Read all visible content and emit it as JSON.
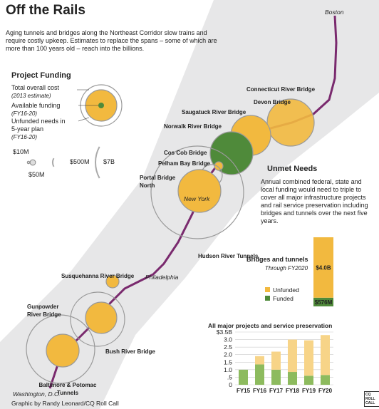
{
  "header": {
    "title": "Off the Rails",
    "subtitle": "Aging tunnels and bridges along the Northeast Corridor slow trains and require costly upkeep. Estimates to replace the spans – some of which are more than 100 years old – reach into the billions."
  },
  "funding_legend": {
    "title": "Project Funding",
    "items": [
      {
        "label": "Total overall cost",
        "note": "(2013 estimate)"
      },
      {
        "label": "Available funding",
        "note": "(FY16-20)"
      },
      {
        "label": "Unfunded needs in 5-year plan",
        "note": "(FY16-20)"
      }
    ],
    "sizes": [
      {
        "value": 10,
        "label": "$10M"
      },
      {
        "value": 50,
        "label": "$50M"
      },
      {
        "value": 500,
        "label": "$500M"
      },
      {
        "value": 7000,
        "label": "$7B"
      }
    ]
  },
  "map": {
    "cities": [
      "Boston",
      "New York",
      "Philadelphia",
      "Washington, D.C."
    ],
    "projects": [
      "Connecticut River Bridge",
      "Devon Bridge",
      "Saugatuck River Bridge",
      "Norwalk River Bridge",
      "Cos Cob Bridge",
      "Pelham Bay Bridge",
      "Portal Bridge North",
      "Hudson River Tunnels",
      "Susquehanna River Bridge",
      "Gunpowder River Bridge",
      "Bush River Bridge",
      "Baltimore & Potomac Tunnels"
    ]
  },
  "unmet_needs": {
    "title": "Unmet Needs",
    "text": "Annual combined federal, state and local funding would need to triple to cover all major infrastructure projects and rail service preservation including bridges and tunnels over the next five years."
  },
  "bridges_chart": {
    "type": "bar",
    "title": "Bridges and tunnels",
    "subtitle": "Through FY2020",
    "series": [
      {
        "name": "Unfunded",
        "color": "#f2b93f",
        "values": [
          4.0
        ],
        "value_labels": [
          "$4.0B"
        ]
      },
      {
        "name": "Funded",
        "color": "#4f8a3a",
        "values": [
          0.576
        ],
        "value_labels": [
          "$576M"
        ]
      }
    ]
  },
  "all_chart": {
    "type": "bar",
    "title": "All major projects and service preservation",
    "categories": [
      "FY15",
      "FY16",
      "FY17",
      "FY18",
      "FY19",
      "FY20"
    ],
    "series": [
      {
        "color": "#8dbb5e",
        "values": [
          1.0,
          1.35,
          1.0,
          0.85,
          0.6,
          0.65
        ]
      },
      {
        "color": "#f7d488",
        "values": [
          0,
          0.55,
          1.2,
          2.15,
          2.35,
          2.65
        ]
      }
    ],
    "ylim": [
      0,
      3.5
    ],
    "yticks": [
      0,
      {
        "value": 0.5,
        "label": ".5"
      },
      {
        "value": 1,
        "label": "1.0"
      },
      1.5,
      {
        "value": 2,
        "label": "2.0"
      },
      2.5,
      {
        "value": 3,
        "label": "3.0"
      },
      {
        "value": 3.5,
        "label": "$3.5B"
      }
    ]
  },
  "credit": {
    "text": "Graphic by Randy Leonard/CQ Roll Call",
    "logo": "CQ ROLL CALL"
  }
}
